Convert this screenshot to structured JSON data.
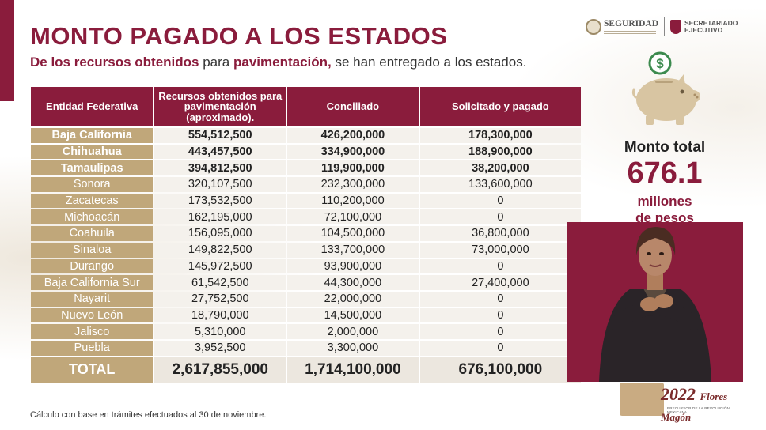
{
  "title": "MONTO PAGADO A LOS ESTADOS",
  "subtitle": {
    "part1": "De los recursos obtenidos",
    "part2": " para ",
    "part3": "pavimentación,",
    "part4": " se han entregado a los estados."
  },
  "logos": {
    "seguridad": "SEGURIDAD",
    "secretariado_line1": "SECRETARIADO",
    "secretariado_line2": "EJECUTIVO"
  },
  "table": {
    "headers": [
      "Entidad Federativa",
      "Recursos obtenidos para pavimentación (aproximado).",
      "Conciliado",
      "Solicitado y pagado"
    ],
    "rows": [
      {
        "estado": "Baja California",
        "recursos": "554,512,500",
        "conciliado": "426,200,000",
        "pagado": "178,300,000"
      },
      {
        "estado": "Chihuahua",
        "recursos": "443,457,500",
        "conciliado": "334,900,000",
        "pagado": "188,900,000"
      },
      {
        "estado": "Tamaulipas",
        "recursos": "394,812,500",
        "conciliado": "119,900,000",
        "pagado": "38,200,000"
      },
      {
        "estado": "Sonora",
        "recursos": "320,107,500",
        "conciliado": "232,300,000",
        "pagado": "133,600,000"
      },
      {
        "estado": "Zacatecas",
        "recursos": "173,532,500",
        "conciliado": "110,200,000",
        "pagado": "0"
      },
      {
        "estado": "Michoacán",
        "recursos": "162,195,000",
        "conciliado": "72,100,000",
        "pagado": "0"
      },
      {
        "estado": "Coahuila",
        "recursos": "156,095,000",
        "conciliado": "104,500,000",
        "pagado": "36,800,000"
      },
      {
        "estado": "Sinaloa",
        "recursos": "149,822,500",
        "conciliado": "133,700,000",
        "pagado": "73,000,000"
      },
      {
        "estado": "Durango",
        "recursos": "145,972,500",
        "conciliado": "93,900,000",
        "pagado": "0"
      },
      {
        "estado": "Baja California Sur",
        "recursos": "61,542,500",
        "conciliado": "44,300,000",
        "pagado": "27,400,000"
      },
      {
        "estado": "Nayarit",
        "recursos": "27,752,500",
        "conciliado": "22,000,000",
        "pagado": "0"
      },
      {
        "estado": "Nuevo León",
        "recursos": "18,790,000",
        "conciliado": "14,500,000",
        "pagado": "0"
      },
      {
        "estado": "Jalisco",
        "recursos": "5,310,000",
        "conciliado": "2,000,000",
        "pagado": "0"
      },
      {
        "estado": "Puebla",
        "recursos": "3,952,500",
        "conciliado": "3,300,000",
        "pagado": "0"
      }
    ],
    "total": {
      "estado": "TOTAL",
      "recursos": "2,617,855,000",
      "conciliado": "1,714,100,000",
      "pagado": "676,100,000"
    }
  },
  "summary": {
    "label": "Monto total",
    "value": "676.1",
    "unit_line1": "millones",
    "unit_line2": "de pesos"
  },
  "brand": {
    "year": "2022",
    "name": "Flores Magón",
    "tagline": "PRECURSOR DE LA REVOLUCIÓN MEXICANA"
  },
  "footnote": "Cálculo con base en trámites efectuados al 30 de noviembre.",
  "colors": {
    "accent": "#8a1c3c",
    "state_cell": "#c0a77a",
    "value_cell": "#f4f1ec"
  },
  "icons": [
    "piggy-bank-icon",
    "dollar-coin-icon"
  ]
}
